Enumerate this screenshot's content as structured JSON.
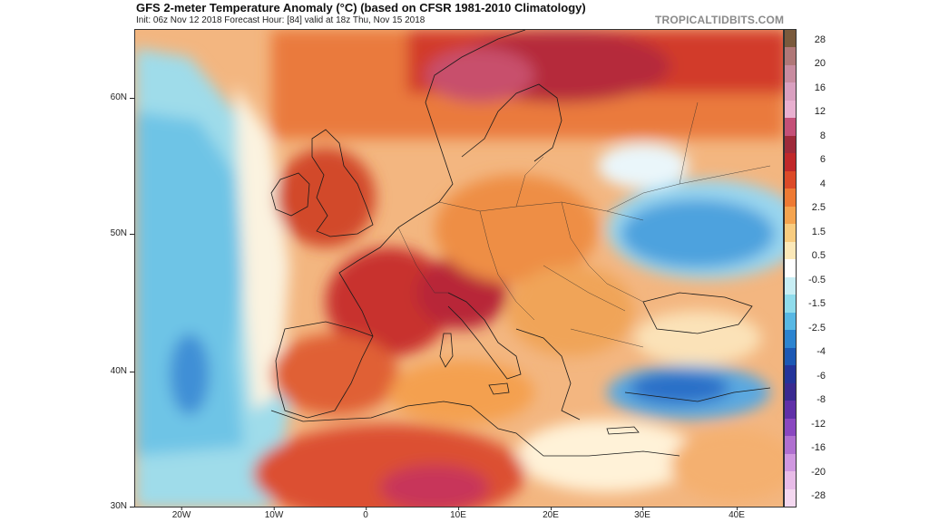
{
  "header": {
    "title": "GFS 2-meter Temperature Anomaly (°C) (based on CFSR 1981-2010 Climatology)",
    "subtitle": "Init: 06z Nov 12 2018   Forecast Hour: [84]   valid at 18z Thu, Nov 15 2018",
    "brand": "TROPICALTIDBITS.COM"
  },
  "map": {
    "lat_labels": [
      "60N",
      "50N",
      "40N",
      "30N"
    ],
    "lon_labels": [
      "20W",
      "10W",
      "0",
      "10E",
      "20E",
      "30E",
      "40E"
    ]
  },
  "colorbar": {
    "labels": [
      "28",
      "20",
      "16",
      "12",
      "8",
      "6",
      "4",
      "2.5",
      "1.5",
      "0.5",
      "-0.5",
      "-1.5",
      "-2.5",
      "-4",
      "-6",
      "-8",
      "-12",
      "-16",
      "-20",
      "-28"
    ],
    "colors": [
      "#7a5a3c",
      "#b07878",
      "#c88ca0",
      "#d9a0c0",
      "#e8b0d0",
      "#c45078",
      "#9e2a3a",
      "#c0282a",
      "#dc4a28",
      "#ee7a34",
      "#f4a450",
      "#f8cc80",
      "#fbe8b8",
      "#ffffff",
      "#c8eef4",
      "#90dcec",
      "#58b8e4",
      "#2c84d0",
      "#1c58b4",
      "#24349a",
      "#3a2a90",
      "#6030a8",
      "#8a48c0",
      "#b070d0",
      "#d098e0",
      "#e8bce8",
      "#f4d8f0"
    ]
  }
}
